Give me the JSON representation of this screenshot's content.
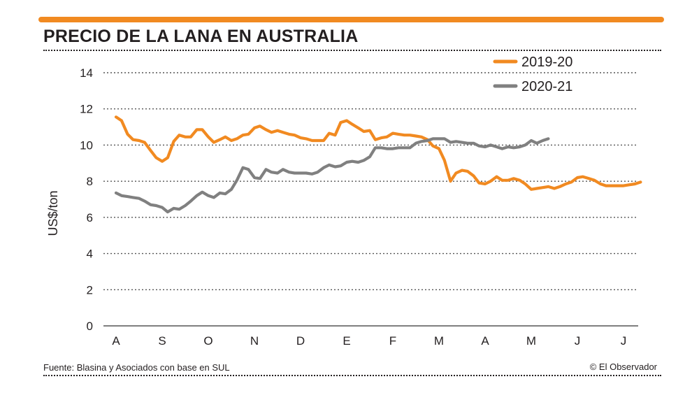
{
  "header": {
    "title": "PRECIO DE LA LANA EN AUSTRALIA"
  },
  "footer": {
    "source": "Fuente: Blasina y Asociados con base en SUL",
    "credit": "© El Observador"
  },
  "colors": {
    "accent": "#f18a21",
    "series_2019_20": "#f18a21",
    "series_2020_21": "#808080",
    "grid": "#231f20",
    "text": "#231f20"
  },
  "chart_data": {
    "type": "line",
    "title": "PRECIO DE LA LANA EN AUSTRALIA",
    "xlabel": "",
    "ylabel": "US$/ton",
    "ylim": [
      0,
      14
    ],
    "yticks": [
      0,
      2,
      4,
      6,
      8,
      10,
      12,
      14
    ],
    "xlim": [
      0,
      11.75
    ],
    "categories": [
      "A",
      "S",
      "O",
      "N",
      "D",
      "E",
      "F",
      "M",
      "A",
      "M",
      "J",
      "J"
    ],
    "grid": "horizontal dotted",
    "legend_position": "top-right",
    "series": [
      {
        "name": "2019-20",
        "color": "#f18a21",
        "points": [
          [
            0.0,
            11.55
          ],
          [
            0.12,
            11.35
          ],
          [
            0.25,
            10.6
          ],
          [
            0.37,
            10.3
          ],
          [
            0.5,
            10.25
          ],
          [
            0.62,
            10.15
          ],
          [
            0.75,
            9.7
          ],
          [
            0.87,
            9.3
          ],
          [
            1.0,
            9.1
          ],
          [
            1.12,
            9.3
          ],
          [
            1.25,
            10.2
          ],
          [
            1.37,
            10.55
          ],
          [
            1.5,
            10.45
          ],
          [
            1.62,
            10.45
          ],
          [
            1.75,
            10.85
          ],
          [
            1.87,
            10.85
          ],
          [
            2.0,
            10.45
          ],
          [
            2.12,
            10.15
          ],
          [
            2.25,
            10.3
          ],
          [
            2.37,
            10.45
          ],
          [
            2.5,
            10.25
          ],
          [
            2.62,
            10.35
          ],
          [
            2.75,
            10.55
          ],
          [
            2.87,
            10.6
          ],
          [
            3.0,
            10.95
          ],
          [
            3.12,
            11.05
          ],
          [
            3.25,
            10.85
          ],
          [
            3.37,
            10.7
          ],
          [
            3.5,
            10.8
          ],
          [
            3.62,
            10.7
          ],
          [
            3.75,
            10.6
          ],
          [
            3.87,
            10.55
          ],
          [
            4.0,
            10.4
          ],
          [
            4.12,
            10.35
          ],
          [
            4.25,
            10.25
          ],
          [
            4.37,
            10.25
          ],
          [
            4.5,
            10.25
          ],
          [
            4.62,
            10.65
          ],
          [
            4.75,
            10.55
          ],
          [
            4.87,
            11.25
          ],
          [
            5.0,
            11.35
          ],
          [
            5.12,
            11.15
          ],
          [
            5.25,
            10.95
          ],
          [
            5.37,
            10.75
          ],
          [
            5.5,
            10.8
          ],
          [
            5.62,
            10.3
          ],
          [
            5.75,
            10.4
          ],
          [
            5.87,
            10.45
          ],
          [
            6.0,
            10.65
          ],
          [
            6.12,
            10.6
          ],
          [
            6.25,
            10.55
          ],
          [
            6.37,
            10.55
          ],
          [
            6.5,
            10.5
          ],
          [
            6.62,
            10.45
          ],
          [
            6.75,
            10.3
          ],
          [
            6.87,
            9.95
          ],
          [
            7.0,
            9.8
          ],
          [
            7.12,
            9.15
          ],
          [
            7.25,
            8.0
          ],
          [
            7.37,
            8.45
          ],
          [
            7.5,
            8.6
          ],
          [
            7.62,
            8.55
          ],
          [
            7.75,
            8.3
          ],
          [
            7.87,
            7.9
          ],
          [
            8.0,
            7.85
          ],
          [
            8.12,
            8.0
          ],
          [
            8.25,
            8.25
          ],
          [
            8.37,
            8.05
          ],
          [
            8.5,
            8.05
          ],
          [
            8.62,
            8.15
          ],
          [
            8.75,
            8.05
          ],
          [
            8.87,
            7.85
          ],
          [
            9.0,
            7.55
          ],
          [
            9.12,
            7.6
          ],
          [
            9.25,
            7.65
          ],
          [
            9.37,
            7.7
          ],
          [
            9.5,
            7.6
          ],
          [
            9.62,
            7.7
          ],
          [
            9.75,
            7.85
          ],
          [
            9.87,
            7.95
          ],
          [
            10.0,
            8.2
          ],
          [
            10.12,
            8.25
          ],
          [
            10.25,
            8.15
          ],
          [
            10.37,
            8.05
          ],
          [
            10.5,
            7.85
          ],
          [
            10.62,
            7.75
          ],
          [
            10.75,
            7.75
          ],
          [
            10.87,
            7.75
          ],
          [
            11.0,
            7.75
          ],
          [
            11.12,
            7.8
          ],
          [
            11.25,
            7.85
          ],
          [
            11.37,
            7.95
          ]
        ]
      },
      {
        "name": "2020-21",
        "color": "#808080",
        "points": [
          [
            0.0,
            7.35
          ],
          [
            0.12,
            7.2
          ],
          [
            0.25,
            7.15
          ],
          [
            0.37,
            7.1
          ],
          [
            0.5,
            7.05
          ],
          [
            0.62,
            6.9
          ],
          [
            0.75,
            6.7
          ],
          [
            0.87,
            6.65
          ],
          [
            1.0,
            6.55
          ],
          [
            1.12,
            6.3
          ],
          [
            1.25,
            6.5
          ],
          [
            1.37,
            6.45
          ],
          [
            1.5,
            6.65
          ],
          [
            1.62,
            6.9
          ],
          [
            1.75,
            7.2
          ],
          [
            1.87,
            7.4
          ],
          [
            2.0,
            7.2
          ],
          [
            2.12,
            7.1
          ],
          [
            2.25,
            7.35
          ],
          [
            2.37,
            7.3
          ],
          [
            2.5,
            7.55
          ],
          [
            2.62,
            8.05
          ],
          [
            2.75,
            8.75
          ],
          [
            2.87,
            8.65
          ],
          [
            3.0,
            8.2
          ],
          [
            3.12,
            8.15
          ],
          [
            3.25,
            8.65
          ],
          [
            3.37,
            8.5
          ],
          [
            3.5,
            8.45
          ],
          [
            3.62,
            8.65
          ],
          [
            3.75,
            8.5
          ],
          [
            3.87,
            8.45
          ],
          [
            4.0,
            8.45
          ],
          [
            4.12,
            8.45
          ],
          [
            4.25,
            8.4
          ],
          [
            4.37,
            8.5
          ],
          [
            4.5,
            8.75
          ],
          [
            4.62,
            8.9
          ],
          [
            4.75,
            8.8
          ],
          [
            4.87,
            8.85
          ],
          [
            5.0,
            9.05
          ],
          [
            5.12,
            9.1
          ],
          [
            5.25,
            9.05
          ],
          [
            5.37,
            9.15
          ],
          [
            5.5,
            9.35
          ],
          [
            5.62,
            9.85
          ],
          [
            5.75,
            9.85
          ],
          [
            5.87,
            9.8
          ],
          [
            6.0,
            9.8
          ],
          [
            6.12,
            9.85
          ],
          [
            6.25,
            9.85
          ],
          [
            6.37,
            9.85
          ],
          [
            6.5,
            10.1
          ],
          [
            6.62,
            10.2
          ],
          [
            6.75,
            10.25
          ],
          [
            6.87,
            10.35
          ],
          [
            7.0,
            10.35
          ],
          [
            7.12,
            10.35
          ],
          [
            7.25,
            10.15
          ],
          [
            7.37,
            10.2
          ],
          [
            7.5,
            10.15
          ],
          [
            7.62,
            10.1
          ],
          [
            7.75,
            10.1
          ],
          [
            7.87,
            9.95
          ],
          [
            8.0,
            9.9
          ],
          [
            8.12,
            10.0
          ],
          [
            8.25,
            9.9
          ],
          [
            8.37,
            9.8
          ],
          [
            8.5,
            9.9
          ],
          [
            8.62,
            9.85
          ],
          [
            8.75,
            9.9
          ],
          [
            8.87,
            10.0
          ],
          [
            9.0,
            10.25
          ],
          [
            9.12,
            10.1
          ],
          [
            9.25,
            10.25
          ],
          [
            9.37,
            10.35
          ]
        ]
      }
    ]
  }
}
